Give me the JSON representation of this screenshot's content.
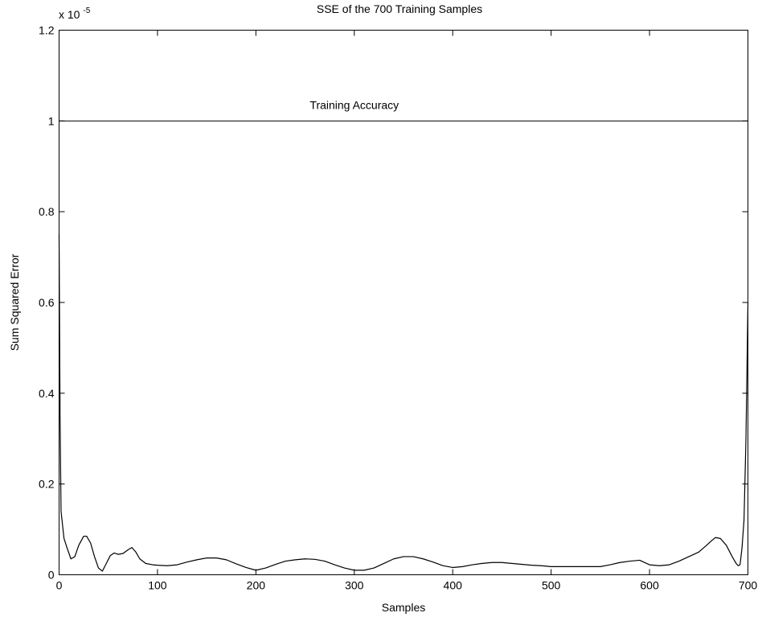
{
  "chart_data": {
    "type": "line",
    "title": "SSE of the 700 Training Samples",
    "xlabel": "Samples",
    "ylabel": "Sum Squared Error",
    "scale_label": "x 10",
    "scale_exponent": "-5",
    "xlim": [
      0,
      700
    ],
    "ylim": [
      0,
      1.2
    ],
    "xticks": [
      0,
      100,
      200,
      300,
      400,
      500,
      600,
      700
    ],
    "yticks": [
      0,
      0.2,
      0.4,
      0.6,
      0.8,
      1,
      1.2
    ],
    "ytick_labels": [
      "0",
      "0.2",
      "0.4",
      "0.6",
      "0.8",
      "1",
      "1.2"
    ],
    "grid": false,
    "line_color": "#000000",
    "reference_line": {
      "label": "Training Accuracy",
      "y": 1
    },
    "series": [
      {
        "x": [
          0,
          1,
          2,
          3,
          5,
          8,
          12,
          16,
          20,
          25,
          28,
          32,
          36,
          40,
          44,
          48,
          52,
          56,
          60,
          65,
          70,
          74,
          78,
          82,
          88,
          95,
          100,
          110,
          120,
          130,
          140,
          150,
          160,
          170,
          180,
          190,
          200,
          210,
          220,
          230,
          240,
          250,
          260,
          270,
          280,
          290,
          300,
          310,
          320,
          330,
          340,
          350,
          360,
          370,
          380,
          390,
          400,
          410,
          420,
          430,
          440,
          450,
          460,
          470,
          480,
          490,
          500,
          510,
          520,
          530,
          540,
          550,
          560,
          570,
          580,
          590,
          600,
          610,
          620,
          630,
          640,
          650,
          658,
          663,
          667,
          672,
          678,
          684,
          688,
          690,
          692,
          694,
          696,
          698,
          700
        ],
        "y": [
          0.75,
          0.35,
          0.14,
          0.12,
          0.08,
          0.06,
          0.035,
          0.04,
          0.065,
          0.085,
          0.085,
          0.07,
          0.04,
          0.015,
          0.008,
          0.025,
          0.042,
          0.048,
          0.045,
          0.047,
          0.055,
          0.06,
          0.05,
          0.035,
          0.025,
          0.022,
          0.021,
          0.02,
          0.022,
          0.028,
          0.033,
          0.037,
          0.037,
          0.033,
          0.024,
          0.016,
          0.01,
          0.015,
          0.023,
          0.03,
          0.033,
          0.035,
          0.034,
          0.03,
          0.022,
          0.015,
          0.01,
          0.01,
          0.015,
          0.025,
          0.035,
          0.04,
          0.04,
          0.035,
          0.028,
          0.02,
          0.016,
          0.018,
          0.022,
          0.025,
          0.027,
          0.027,
          0.025,
          0.023,
          0.021,
          0.02,
          0.018,
          0.018,
          0.018,
          0.018,
          0.018,
          0.018,
          0.022,
          0.027,
          0.03,
          0.032,
          0.022,
          0.02,
          0.022,
          0.03,
          0.04,
          0.05,
          0.065,
          0.075,
          0.082,
          0.08,
          0.065,
          0.04,
          0.025,
          0.02,
          0.022,
          0.06,
          0.12,
          0.3,
          0.6
        ]
      }
    ]
  }
}
